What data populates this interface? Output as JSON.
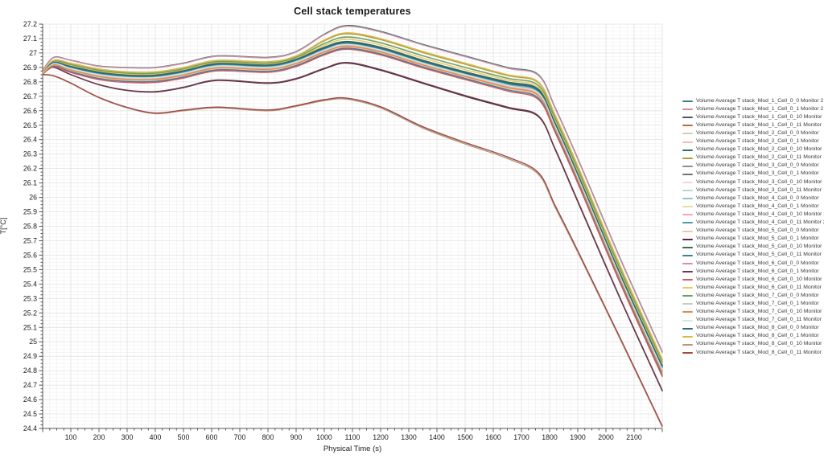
{
  "chart_data": {
    "type": "line",
    "title": "Cell stack temperatures",
    "xlabel": "Physical Time (s)",
    "ylabel": "T[°C]",
    "xlim": [
      0,
      2200
    ],
    "ylim": [
      24.4,
      27.2
    ],
    "grid": true,
    "legend_position": "right",
    "x_ticks": [
      100,
      200,
      300,
      400,
      500,
      600,
      700,
      800,
      900,
      1000,
      1100,
      1200,
      1300,
      1400,
      1500,
      1600,
      1700,
      1800,
      1900,
      2000,
      2100
    ],
    "x_minor_step": 25,
    "y_ticks": [
      27.2,
      27.1,
      27,
      26.9,
      26.8,
      26.7,
      26.6,
      26.5,
      26.4,
      26.3,
      26.2,
      26.1,
      26,
      25.9,
      25.8,
      25.7,
      25.6,
      25.5,
      25.4,
      25.3,
      25.2,
      25.1,
      25,
      24.9,
      24.8,
      24.7,
      24.6,
      24.5,
      24.4
    ],
    "y_minor_step": 0.025,
    "t": [
      0,
      40,
      100,
      200,
      300,
      400,
      500,
      620,
      800,
      900,
      1000,
      1080,
      1200,
      1350,
      1500,
      1650,
      1760,
      1820,
      1900,
      2050,
      2200
    ],
    "profiles": {
      "top": [
        26.88,
        26.97,
        26.95,
        26.91,
        26.9,
        26.9,
        26.93,
        26.98,
        26.97,
        27.01,
        27.13,
        27.19,
        27.15,
        27.06,
        26.98,
        26.9,
        26.85,
        26.62,
        26.27,
        25.58,
        24.93
      ],
      "band2_hi": [
        26.87,
        26.95,
        26.93,
        26.89,
        26.87,
        26.87,
        26.9,
        26.95,
        26.94,
        26.98,
        27.09,
        27.14,
        27.1,
        27.01,
        26.93,
        26.85,
        26.8,
        26.57,
        26.22,
        25.53,
        24.88
      ],
      "cluster_hi": [
        26.87,
        26.94,
        26.91,
        26.87,
        26.85,
        26.85,
        26.88,
        26.93,
        26.92,
        26.96,
        27.04,
        27.08,
        27.04,
        26.95,
        26.87,
        26.8,
        26.75,
        26.52,
        26.17,
        25.48,
        24.84
      ],
      "cluster_lo": [
        26.85,
        26.9,
        26.86,
        26.81,
        26.79,
        26.79,
        26.82,
        26.87,
        26.86,
        26.9,
        26.98,
        27.02,
        26.98,
        26.89,
        26.81,
        26.73,
        26.67,
        26.44,
        26.09,
        25.4,
        24.75
      ],
      "plum": [
        26.88,
        26.9,
        26.85,
        26.78,
        26.74,
        26.73,
        26.76,
        26.81,
        26.79,
        26.82,
        26.89,
        26.93,
        26.88,
        26.79,
        26.7,
        26.62,
        26.56,
        26.33,
        25.97,
        25.3,
        24.66
      ],
      "low": [
        26.85,
        26.84,
        26.79,
        26.69,
        26.62,
        26.58,
        26.6,
        26.62,
        26.6,
        26.63,
        26.67,
        26.68,
        26.62,
        26.48,
        26.37,
        26.27,
        26.16,
        25.93,
        25.62,
        25.02,
        24.41
      ]
    },
    "series": [
      {
        "label": "Volume Average T stack_Mod_1_Cell_0_0 Monitor 2",
        "color": "#3d7f96",
        "lo": "cluster_lo",
        "hi": "cluster_hi",
        "mix": 0.92
      },
      {
        "label": "Volume Average T stack_Mod_1_Cell_0_1 Monitor 2",
        "color": "#c98fa6",
        "lo": "cluster_lo",
        "hi": "cluster_hi",
        "mix": 0.72
      },
      {
        "label": "Volume Average T stack_Mod_1_Cell_0_10 Monitor",
        "color": "#55565c",
        "lo": "cluster_lo",
        "hi": "cluster_hi",
        "mix": 0.97
      },
      {
        "label": "Volume Average T stack_Mod_1_Cell_0_11 Monitor",
        "color": "#b26d3f",
        "lo": "cluster_lo",
        "hi": "cluster_hi",
        "mix": 0.85
      },
      {
        "label": "Volume Average T stack_Mod_2_Cell_0_0 Monitor",
        "color": "#d9c8b4",
        "lo": "cluster_lo",
        "hi": "cluster_hi",
        "mix": 0.42
      },
      {
        "label": "Volume Average T stack_Mod_2_Cell_0_1 Monitor",
        "color": "#f2bac9",
        "lo": "cluster_lo",
        "hi": "cluster_hi",
        "mix": 0.52
      },
      {
        "label": "Volume Average T stack_Mod_2_Cell_0_10 Monitor",
        "color": "#2f7268",
        "lo": "top",
        "hi": "top",
        "mix": 1
      },
      {
        "label": "Volume Average T stack_Mod_2_Cell_0_11 Monitor",
        "color": "#b29a43",
        "lo": "cluster_hi",
        "hi": "band2_hi",
        "mix": 0.88
      },
      {
        "label": "Volume Average T stack_Mod_3_Cell_0_0 Monitor",
        "color": "#8d8e96",
        "lo": "cluster_lo",
        "hi": "cluster_hi",
        "mix": 0.62
      },
      {
        "label": "Volume Average T stack_Mod_3_Cell_0_1 Monitor",
        "color": "#7b7168",
        "lo": "cluster_lo",
        "hi": "cluster_hi",
        "mix": 0.67
      },
      {
        "label": "Volume Average T stack_Mod_3_Cell_0_10 Monitor",
        "color": "#f7d3de",
        "lo": "cluster_lo",
        "hi": "cluster_hi",
        "mix": 0.3
      },
      {
        "label": "Volume Average T stack_Mod_3_Cell_0_11 Monitor",
        "color": "#b9d9c2",
        "lo": "cluster_hi",
        "hi": "band2_hi",
        "mix": 0.55
      },
      {
        "label": "Volume Average T stack_Mod_4_Cell_0_0 Monitor",
        "color": "#8cc9ba",
        "lo": "cluster_lo",
        "hi": "cluster_hi",
        "mix": 0.77
      },
      {
        "label": "Volume Average T stack_Mod_4_Cell_0_1 Monitor",
        "color": "#e9da9b",
        "lo": "cluster_lo",
        "hi": "cluster_hi",
        "mix": 0.37
      },
      {
        "label": "Volume Average T stack_Mod_4_Cell_0_10 Monitor 2",
        "color": "#f1a9ba",
        "lo": "cluster_lo",
        "hi": "cluster_hi",
        "mix": 0.57
      },
      {
        "label": "Volume Average T stack_Mod_4_Cell_0_11 Monitor 2",
        "color": "#4a9cb4",
        "lo": "cluster_lo",
        "hi": "cluster_hi",
        "mix": 0.82
      },
      {
        "label": "Volume Average T stack_Mod_5_Cell_0_0 Monitor",
        "color": "#f2c3a2",
        "lo": "cluster_lo",
        "hi": "cluster_hi",
        "mix": 0.32
      },
      {
        "label": "Volume Average T stack_Mod_5_Cell_0_1 Monitor",
        "color": "#582b3c",
        "lo": "plum",
        "hi": "plum",
        "mix": 0
      },
      {
        "label": "Volume Average T stack_Mod_5_Cell_0_10 Monitor",
        "color": "#3a6b4b",
        "lo": "cluster_lo",
        "hi": "cluster_hi",
        "mix": 1
      },
      {
        "label": "Volume Average T stack_Mod_5_Cell_0_11 Monitor",
        "color": "#3b7cab",
        "lo": "cluster_lo",
        "hi": "cluster_hi",
        "mix": 0.22
      },
      {
        "label": "Volume Average T stack_Mod_6_Cell_0_0 Monitor",
        "color": "#d68fa9",
        "lo": "band2_hi",
        "hi": "top",
        "mix": 0.9
      },
      {
        "label": "Volume Average T stack_Mod_6_Cell_0_1 Monitor",
        "color": "#6b3b4d",
        "lo": "plum",
        "hi": "cluster_lo",
        "mix": 0.05
      },
      {
        "label": "Volume Average T stack_Mod_6_Cell_0_10 Monitor",
        "color": "#d05c5c",
        "lo": "cluster_lo",
        "hi": "cluster_hi",
        "mix": 0.1
      },
      {
        "label": "Volume Average T stack_Mod_6_Cell_0_11 Monitor",
        "color": "#e9c964",
        "lo": "cluster_hi",
        "hi": "band2_hi",
        "mix": 0.25
      },
      {
        "label": "Volume Average T stack_Mod_7_Cell_0_0 Monitor",
        "color": "#6f9e5d",
        "lo": "cluster_hi",
        "hi": "band2_hi",
        "mix": 0.5
      },
      {
        "label": "Volume Average T stack_Mod_7_Cell_0_1 Monitor",
        "color": "#c3cbd3",
        "lo": "cluster_lo",
        "hi": "cluster_hi",
        "mix": 0.47
      },
      {
        "label": "Volume Average T stack_Mod_7_Cell_0_10 Monitor",
        "color": "#e28a49",
        "lo": "cluster_lo",
        "hi": "cluster_hi",
        "mix": 0.45
      },
      {
        "label": "Volume Average T stack_Mod_7_Cell_0_11 Monitor",
        "color": "#cdeae2",
        "lo": "cluster_lo",
        "hi": "cluster_hi",
        "mix": 0.65
      },
      {
        "label": "Volume Average T stack_Mod_8_Cell_0_0 Monitor",
        "color": "#2b6b8c",
        "lo": "cluster_lo",
        "hi": "cluster_hi",
        "mix": 0.87
      },
      {
        "label": "Volume Average T stack_Mod_8_Cell_0_1 Monitor",
        "color": "#d9ba45",
        "lo": "cluster_hi",
        "hi": "band2_hi",
        "mix": 1
      },
      {
        "label": "Volume Average T stack_Mod_8_Cell_0_10 Monitor",
        "color": "#b19a7b",
        "lo": "low",
        "hi": "low",
        "mix": 0
      },
      {
        "label": "Volume Average T stack_Mod_8_Cell_0_11 Monitor",
        "color": "#a04848",
        "lo": "low",
        "hi": "plum",
        "mix": 0.03
      }
    ]
  }
}
